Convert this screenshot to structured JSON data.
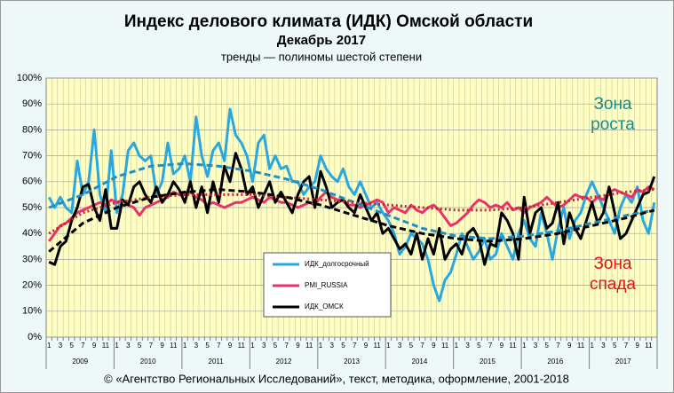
{
  "chart_data": {
    "type": "line",
    "title": "Индекс делового климата (ИДК) Омской области",
    "subtitle": "Декабрь  2017",
    "note": "тренды — полиномы шестой степени",
    "annotations": [
      {
        "lines": [
          "Зона",
          "роста"
        ],
        "color": "#1a8a8a"
      },
      {
        "lines": [
          "Зона",
          "спада"
        ],
        "color": "#e8101a"
      }
    ],
    "footer": "© «Агентство Региональных Исследований», текст, методика, оформление, 2001-2018",
    "categories": [
      "1",
      null,
      "3",
      null,
      "5",
      null,
      "7",
      null,
      "9",
      null,
      "11",
      null,
      "1",
      null,
      "3",
      null,
      "5",
      null,
      "7",
      null,
      "9",
      null,
      "11",
      null,
      "1",
      null,
      "3",
      null,
      "5",
      null,
      "7",
      null,
      "9",
      null,
      "11",
      null,
      "1",
      null,
      "3",
      null,
      "5",
      null,
      "7",
      null,
      "9",
      null,
      "11",
      null,
      "1",
      null,
      "3",
      null,
      "5",
      null,
      "7",
      null,
      "9",
      null,
      "11",
      null,
      "1",
      null,
      "3",
      null,
      "5",
      null,
      "7",
      null,
      "9",
      null,
      "11",
      null,
      "1",
      null,
      "3",
      null,
      "5",
      null,
      "7",
      null,
      "9",
      null,
      "11",
      null,
      "1",
      null,
      "3",
      null,
      "5",
      null,
      "7",
      null,
      "9",
      null,
      "11",
      null,
      "1",
      null,
      "3",
      null,
      "5",
      null,
      "7",
      null,
      "9",
      null,
      "11",
      null
    ],
    "years": [
      "2009",
      "2010",
      "2011",
      "2012",
      "2013",
      "2014",
      "2015",
      "2016",
      "2017"
    ],
    "ylim": [
      0,
      100
    ],
    "yticks": [
      {
        "value": 0,
        "label": "0%"
      },
      {
        "value": 10,
        "label": "10%"
      },
      {
        "value": 20,
        "label": "20%"
      },
      {
        "value": 30,
        "label": "30%"
      },
      {
        "value": 40,
        "label": "40%"
      },
      {
        "value": 50,
        "label": "50%"
      },
      {
        "value": 60,
        "label": "60%"
      },
      {
        "value": 70,
        "label": "70%"
      },
      {
        "value": 80,
        "label": "80%"
      },
      {
        "value": 90,
        "label": "90%"
      },
      {
        "value": 100,
        "label": "100%"
      }
    ],
    "grid": true,
    "series": [
      {
        "name": "ИДК_долгосрочный",
        "color": "#29a8e0",
        "values": [
          54,
          50,
          54,
          50,
          48,
          68,
          55,
          60,
          80,
          55,
          48,
          72,
          48,
          55,
          72,
          75,
          70,
          68,
          70,
          55,
          60,
          75,
          63,
          65,
          70,
          60,
          85,
          70,
          62,
          72,
          75,
          68,
          88,
          78,
          75,
          70,
          60,
          75,
          78,
          65,
          70,
          65,
          66,
          60,
          60,
          55,
          58,
          60,
          70,
          65,
          62,
          60,
          65,
          58,
          55,
          60,
          55,
          50,
          52,
          48,
          45,
          40,
          32,
          35,
          40,
          38,
          36,
          30,
          20,
          14,
          22,
          25,
          32,
          40,
          35,
          30,
          33,
          38,
          30,
          32,
          40,
          35,
          30,
          40,
          45,
          38,
          35,
          48,
          40,
          30,
          42,
          50,
          38,
          45,
          48,
          55,
          60,
          55,
          50,
          45,
          40,
          50,
          55,
          52,
          58,
          45,
          40,
          52
        ]
      },
      {
        "name": "PMI_RUSSIA",
        "color": "#e8336a",
        "values": [
          37,
          40,
          43,
          44,
          46,
          48,
          49,
          50,
          51,
          52,
          51,
          53,
          52,
          53,
          51,
          50,
          47,
          50,
          51,
          52,
          53,
          54,
          56,
          55,
          55,
          56,
          54,
          53,
          51,
          52,
          51,
          50,
          51,
          52,
          52,
          53,
          54,
          53,
          52,
          54,
          53,
          52,
          52,
          51,
          50,
          51,
          52,
          51,
          54,
          56,
          54,
          53,
          53,
          51,
          51,
          50,
          51,
          52,
          53,
          52,
          48,
          50,
          49,
          48,
          51,
          49,
          48,
          50,
          51,
          49,
          46,
          43,
          44,
          46,
          48,
          51,
          53,
          52,
          50,
          51,
          50,
          52,
          49,
          50,
          48,
          50,
          51,
          52,
          54,
          52,
          50,
          51,
          53,
          55,
          54,
          54,
          52,
          54,
          53,
          56,
          57,
          56,
          55,
          54,
          57,
          56,
          58,
          57
        ]
      },
      {
        "name": "ИДК_ОМСК",
        "color": "#000000",
        "values": [
          29,
          28,
          35,
          37,
          45,
          50,
          58,
          59,
          50,
          45,
          57,
          42,
          42,
          53,
          51,
          58,
          60,
          55,
          52,
          58,
          52,
          55,
          60,
          57,
          52,
          60,
          50,
          58,
          48,
          60,
          52,
          66,
          60,
          71,
          65,
          55,
          58,
          50,
          55,
          60,
          52,
          56,
          52,
          48,
          55,
          60,
          62,
          50,
          64,
          58,
          50,
          52,
          53,
          50,
          48,
          55,
          50,
          45,
          48,
          40,
          42,
          38,
          34,
          36,
          32,
          40,
          30,
          38,
          32,
          42,
          30,
          34,
          36,
          32,
          40,
          42,
          38,
          28,
          36,
          35,
          48,
          45,
          40,
          30,
          54,
          40,
          48,
          50,
          42,
          44,
          52,
          36,
          48,
          42,
          38,
          45,
          52,
          44,
          48,
          58,
          48,
          38,
          40,
          45,
          50,
          55,
          56,
          62
        ]
      }
    ],
    "trends": [
      {
        "color": "#1f8fc4",
        "x": [
          0,
          6,
          12,
          18,
          24,
          30,
          36,
          42,
          48,
          54,
          60,
          66,
          72,
          78,
          84,
          90,
          96,
          102,
          107
        ],
        "values": [
          50,
          55,
          62,
          66,
          67,
          66,
          64,
          61,
          57,
          52,
          47,
          42,
          39,
          38,
          39,
          41,
          44,
          47,
          49
        ]
      },
      {
        "color": "#c0282d",
        "x": [
          0,
          6,
          12,
          18,
          24,
          30,
          36,
          42,
          48,
          54,
          60,
          66,
          72,
          78,
          84,
          90,
          96,
          102,
          107
        ],
        "values": [
          40,
          48,
          52,
          54,
          55,
          55,
          55,
          54,
          53,
          52,
          51,
          50,
          49,
          49,
          50,
          52,
          54,
          56,
          57
        ]
      },
      {
        "color": "#000000",
        "x": [
          0,
          6,
          12,
          18,
          24,
          30,
          36,
          42,
          48,
          54,
          60,
          66,
          72,
          78,
          84,
          90,
          96,
          102,
          107
        ],
        "values": [
          33,
          44,
          50,
          54,
          56,
          57,
          56,
          54,
          51,
          47,
          43,
          40,
          38,
          37,
          38,
          40,
          43,
          46,
          49
        ]
      }
    ]
  }
}
